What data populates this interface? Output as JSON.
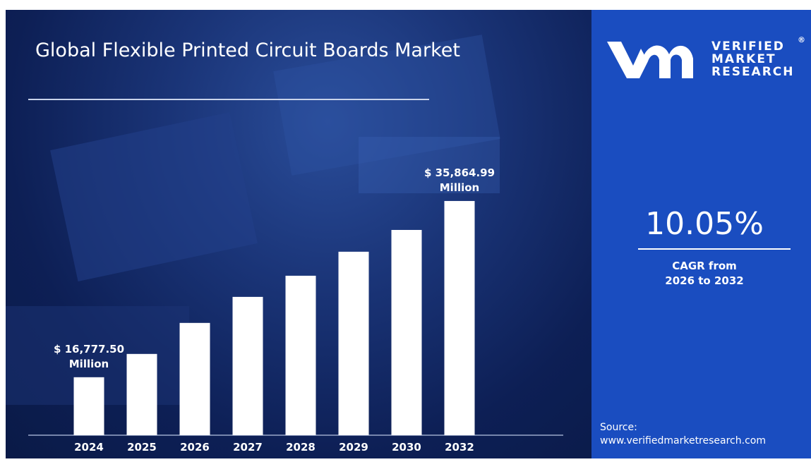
{
  "chart_data": {
    "type": "bar",
    "title": "Global Flexible Printed Circuit Boards Market",
    "categories": [
      "2024",
      "2025",
      "2026",
      "2027",
      "2028",
      "2029",
      "2030",
      "2032"
    ],
    "values": [
      16777.5,
      19300,
      22660,
      25480,
      27770,
      30370,
      32730,
      35864.99
    ],
    "value_labels": [
      "$ 16,777.50 Million",
      null,
      null,
      null,
      null,
      null,
      null,
      "$ 35,864.99 Million"
    ],
    "color": "#ffffff",
    "ylim": [
      10500,
      38000
    ]
  },
  "brand": {
    "line1": "VERIFIED",
    "line2": "MARKET",
    "line3": "RESEARCH",
    "mark": "®"
  },
  "cagr": {
    "value": "10.05%",
    "label": "CAGR from 2026 to 2032"
  },
  "source": {
    "label": "Source:",
    "url": "www.verifiedmarketresearch.com"
  }
}
